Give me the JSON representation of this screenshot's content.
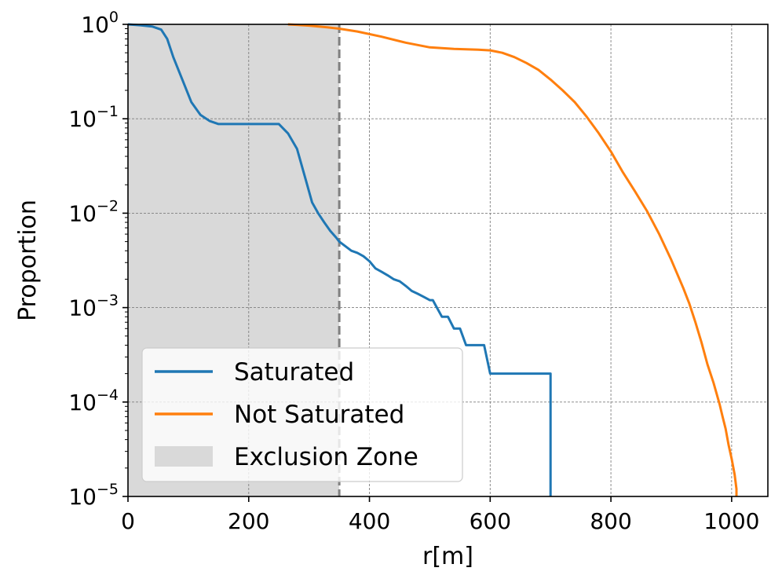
{
  "chart_data": {
    "type": "line",
    "xlabel": "r[m]",
    "ylabel": "Proportion",
    "x_scale": "linear",
    "y_scale": "log",
    "xlim": [
      0,
      1060
    ],
    "ylim": [
      1e-05,
      1
    ],
    "x_ticks": [
      {
        "value": 0,
        "label": "0"
      },
      {
        "value": 200,
        "label": "200"
      },
      {
        "value": 400,
        "label": "400"
      },
      {
        "value": 600,
        "label": "600"
      },
      {
        "value": 800,
        "label": "800"
      },
      {
        "value": 1000,
        "label": "1000"
      }
    ],
    "y_ticks": [
      {
        "value": 1,
        "base": "10",
        "exp": "0"
      },
      {
        "value": 0.1,
        "base": "10",
        "exp": "−1"
      },
      {
        "value": 0.01,
        "base": "10",
        "exp": "−2"
      },
      {
        "value": 0.001,
        "base": "10",
        "exp": "−3"
      },
      {
        "value": 0.0001,
        "base": "10",
        "exp": "−4"
      },
      {
        "value": 1e-05,
        "base": "10",
        "exp": "−5"
      }
    ],
    "grid": true,
    "legend_position": "bottom-left",
    "exclusion_zone": {
      "label": "Exclusion Zone",
      "x_start": 0,
      "x_end": 350,
      "color": "#d9d9d9",
      "boundary_color": "#808080"
    },
    "series": [
      {
        "name": "Saturated",
        "color": "#1f77b4",
        "x": [
          0,
          20,
          40,
          55,
          65,
          75,
          90,
          105,
          120,
          135,
          150,
          200,
          250,
          265,
          280,
          295,
          305,
          315,
          325,
          335,
          345,
          350,
          370,
          380,
          390,
          400,
          410,
          420,
          430,
          440,
          450,
          455,
          460,
          470,
          480,
          490,
          500,
          505,
          510,
          520,
          530,
          540,
          550,
          560,
          570,
          580,
          590,
          600,
          610,
          620,
          640,
          660,
          680,
          700,
          700
        ],
        "y": [
          1,
          0.98,
          0.95,
          0.88,
          0.7,
          0.45,
          0.26,
          0.15,
          0.11,
          0.095,
          0.088,
          0.088,
          0.088,
          0.07,
          0.048,
          0.022,
          0.013,
          0.01,
          0.008,
          0.0065,
          0.0055,
          0.005,
          0.004,
          0.0038,
          0.0035,
          0.0031,
          0.0026,
          0.0024,
          0.0022,
          0.002,
          0.0019,
          0.0018,
          0.0017,
          0.0015,
          0.0014,
          0.0013,
          0.0012,
          0.0012,
          0.00105,
          0.0008,
          0.0008,
          0.0006,
          0.0006,
          0.0004,
          0.0004,
          0.0004,
          0.0004,
          0.0002,
          0.0002,
          0.0002,
          0.0002,
          0.0002,
          0.0002,
          0.0002,
          1e-05
        ]
      },
      {
        "name": "Not Saturated",
        "color": "#ff7f0e",
        "x": [
          265,
          300,
          330,
          350,
          380,
          420,
          460,
          500,
          540,
          580,
          600,
          620,
          640,
          660,
          680,
          700,
          720,
          740,
          760,
          780,
          800,
          820,
          840,
          860,
          880,
          900,
          920,
          930,
          940,
          950,
          960,
          970,
          980,
          985,
          990,
          995,
          1000,
          1005,
          1008,
          1008
        ],
        "y": [
          1,
          0.97,
          0.93,
          0.9,
          0.84,
          0.74,
          0.64,
          0.57,
          0.55,
          0.54,
          0.53,
          0.5,
          0.45,
          0.39,
          0.33,
          0.26,
          0.2,
          0.15,
          0.105,
          0.07,
          0.045,
          0.027,
          0.017,
          0.0105,
          0.006,
          0.0032,
          0.0016,
          0.0011,
          0.0007,
          0.00043,
          0.00025,
          0.00016,
          9.5e-05,
          7e-05,
          5.2e-05,
          3.5e-05,
          2.5e-05,
          1.7e-05,
          1.2e-05,
          1e-05
        ]
      }
    ]
  }
}
